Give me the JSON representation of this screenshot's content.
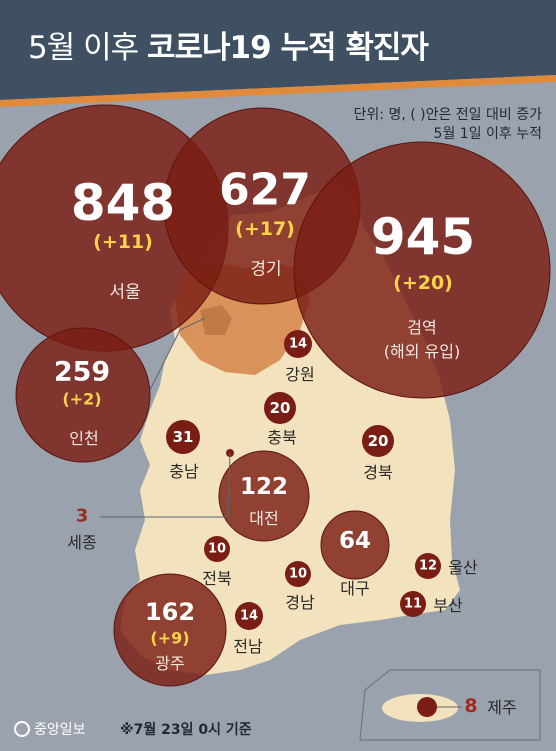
{
  "header": {
    "title_light": "5월 이후 ",
    "title_bold": "코로나19 누적 확진자"
  },
  "unit_note": {
    "line1": "단위: 명, ( )안은 전일 대비 증가",
    "line2": "5월 1일 이후 누적"
  },
  "regions": {
    "seoul": {
      "name": "서울",
      "count": "848",
      "increase": "(+11)"
    },
    "gyeonggi": {
      "name": "경기",
      "count": "627",
      "increase": "(+17)"
    },
    "quarantine": {
      "name": "검역",
      "sub": "(해외 유입)",
      "count": "945",
      "increase": "(+20)"
    },
    "incheon": {
      "name": "인천",
      "count": "259",
      "increase": "(+2)"
    },
    "gangwon": {
      "name": "강원",
      "count": "14"
    },
    "chungbuk": {
      "name": "충북",
      "count": "20"
    },
    "chungnam": {
      "name": "충남",
      "count": "31"
    },
    "gyeongbuk": {
      "name": "경북",
      "count": "20"
    },
    "sejong": {
      "name": "세종",
      "count": "3"
    },
    "daejeon": {
      "name": "대전",
      "count": "122"
    },
    "jeonbuk": {
      "name": "전북",
      "count": "10"
    },
    "gyeongnam": {
      "name": "경남",
      "count": "10"
    },
    "daegu": {
      "name": "대구",
      "count": "64"
    },
    "ulsan": {
      "name": "울산",
      "count": "12"
    },
    "busan": {
      "name": "부산",
      "count": "11"
    },
    "gwangju": {
      "name": "광주",
      "count": "162",
      "increase": "(+9)"
    },
    "jeonnam": {
      "name": "전남",
      "count": "14"
    },
    "jeju": {
      "name": "제주",
      "count": "8"
    }
  },
  "footer": {
    "logo": "중앙일보",
    "note": "※7월 23일 0시 기준"
  },
  "colors": {
    "sea": "#9aa3ad",
    "land": "#f3e2be",
    "capital": "#d9925a",
    "bubble": "#7a1d14",
    "header": "#3f5063",
    "stripe": "#e08a3c",
    "accent": "#ffd24a"
  }
}
